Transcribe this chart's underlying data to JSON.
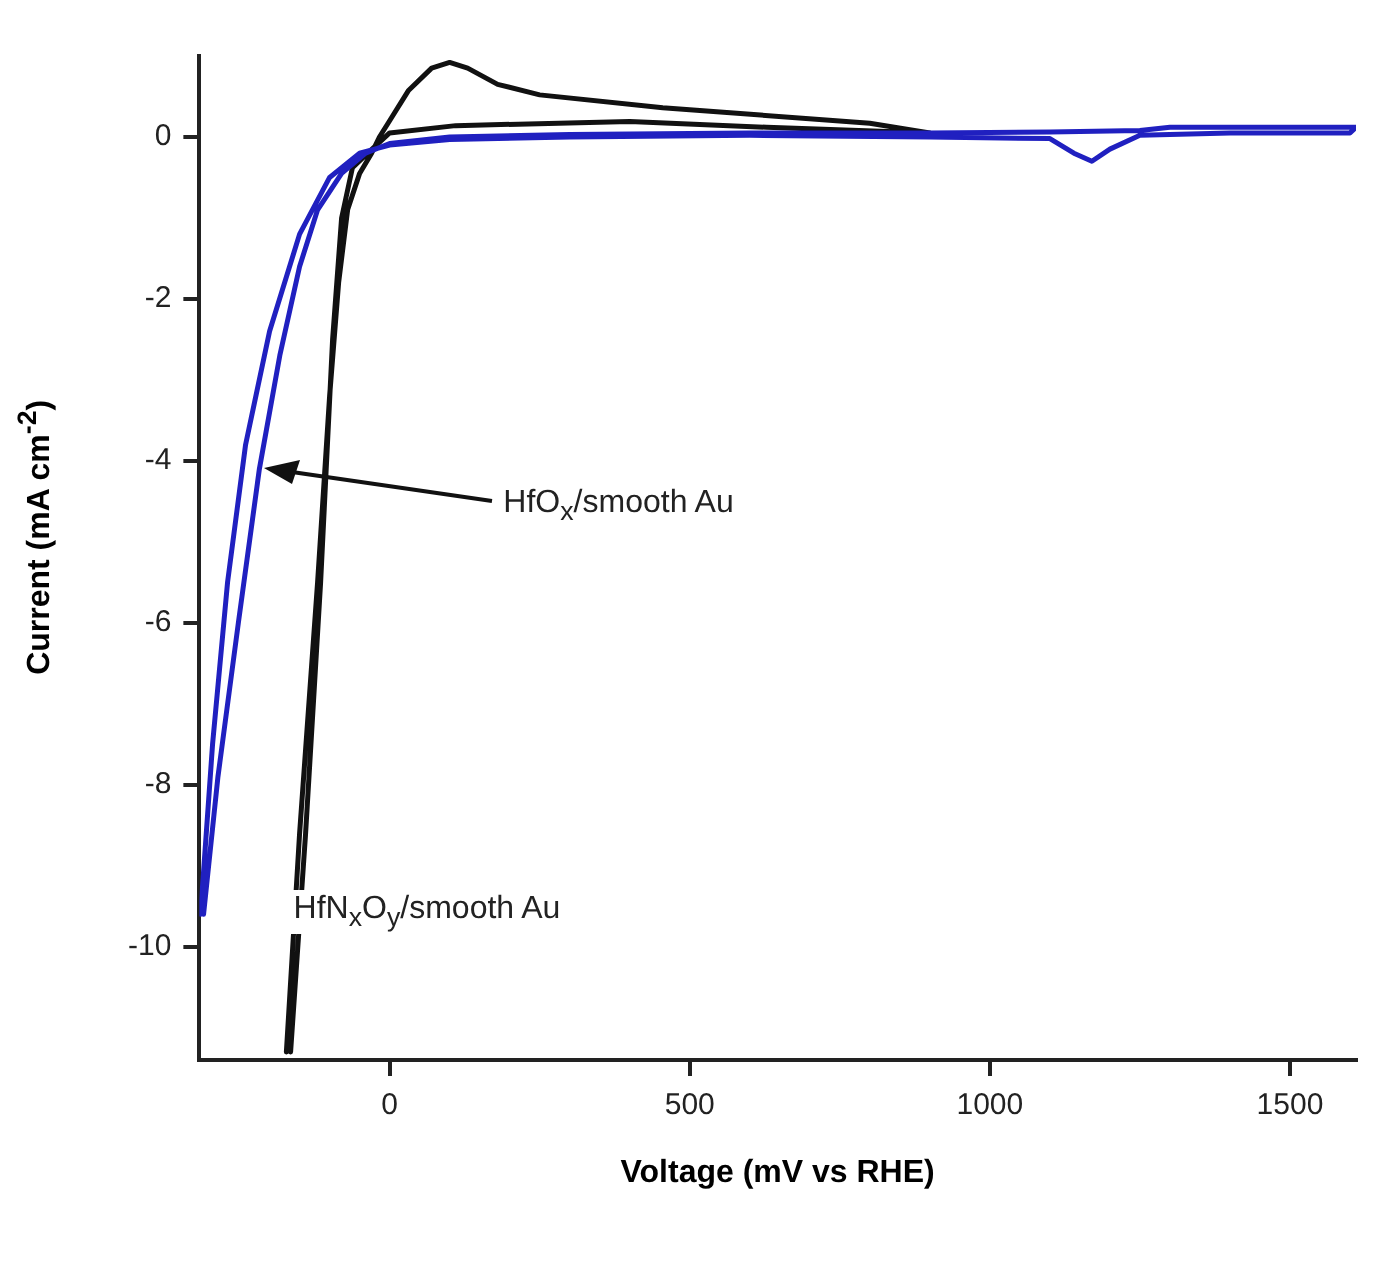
{
  "chart_data": {
    "type": "line",
    "xlabel": "Voltage (mV vs RHE)",
    "ylabel": "Current (mA cm$^{-2}$)",
    "xlim": [
      -317,
      1610
    ],
    "ylim": [
      -11.4,
      1
    ],
    "xticks": [
      0,
      500,
      1000,
      1500
    ],
    "yticks": [
      -10,
      -8,
      -6,
      -4,
      -2,
      0
    ],
    "grid": false,
    "legend": false,
    "marker": "none",
    "line_style": "solid",
    "series": [
      {
        "name": "HfO$_{x}$/smooth Au",
        "color": "#2020c0",
        "x": [
          -310,
          -286,
          -252,
          -217,
          -183,
          -150,
          -120,
          -80,
          -40,
          0,
          100,
          300,
          600,
          900,
          1100,
          1250,
          1300,
          1350,
          1500,
          1610,
          1600,
          1400,
          1250,
          1200,
          1170,
          1140,
          1100,
          900,
          600,
          300,
          100,
          0,
          -50,
          -100,
          -150,
          -200,
          -240,
          -270,
          -295,
          -315
        ],
        "values": [
          -9.6,
          -7.9,
          -6.0,
          -4.1,
          -2.7,
          -1.6,
          -0.9,
          -0.45,
          -0.2,
          -0.08,
          0,
          0.03,
          0.05,
          0.05,
          0.06,
          0.08,
          0.12,
          0.12,
          0.12,
          0.12,
          0.05,
          0.05,
          0.02,
          -0.15,
          -0.3,
          -0.2,
          -0.02,
          0,
          0.02,
          0,
          -0.03,
          -0.1,
          -0.2,
          -0.5,
          -1.2,
          -2.4,
          -3.8,
          -5.5,
          -7.5,
          -9.6
        ]
      },
      {
        "name": "HfN$_{x}$O$_{y}$/smooth Au",
        "color": "#111111",
        "x": [
          -172,
          -150,
          -120,
          -100,
          -85,
          -70,
          -50,
          -30,
          -17,
          0,
          31,
          70,
          100,
          130,
          180,
          250,
          455,
          800,
          900,
          628,
          400,
          110,
          0,
          -28,
          -62,
          -80,
          -95,
          -115,
          -140,
          -165
        ],
        "values": [
          -11.3,
          -8.6,
          -5.5,
          -3.2,
          -1.8,
          -0.9,
          -0.45,
          -0.2,
          0,
          0.2,
          0.57,
          0.85,
          0.92,
          0.85,
          0.65,
          0.52,
          0.36,
          0.17,
          0.05,
          0.12,
          0.19,
          0.14,
          0.05,
          -0.14,
          -0.38,
          -1.0,
          -2.5,
          -5.5,
          -8.6,
          -11.3
        ]
      }
    ]
  }
}
